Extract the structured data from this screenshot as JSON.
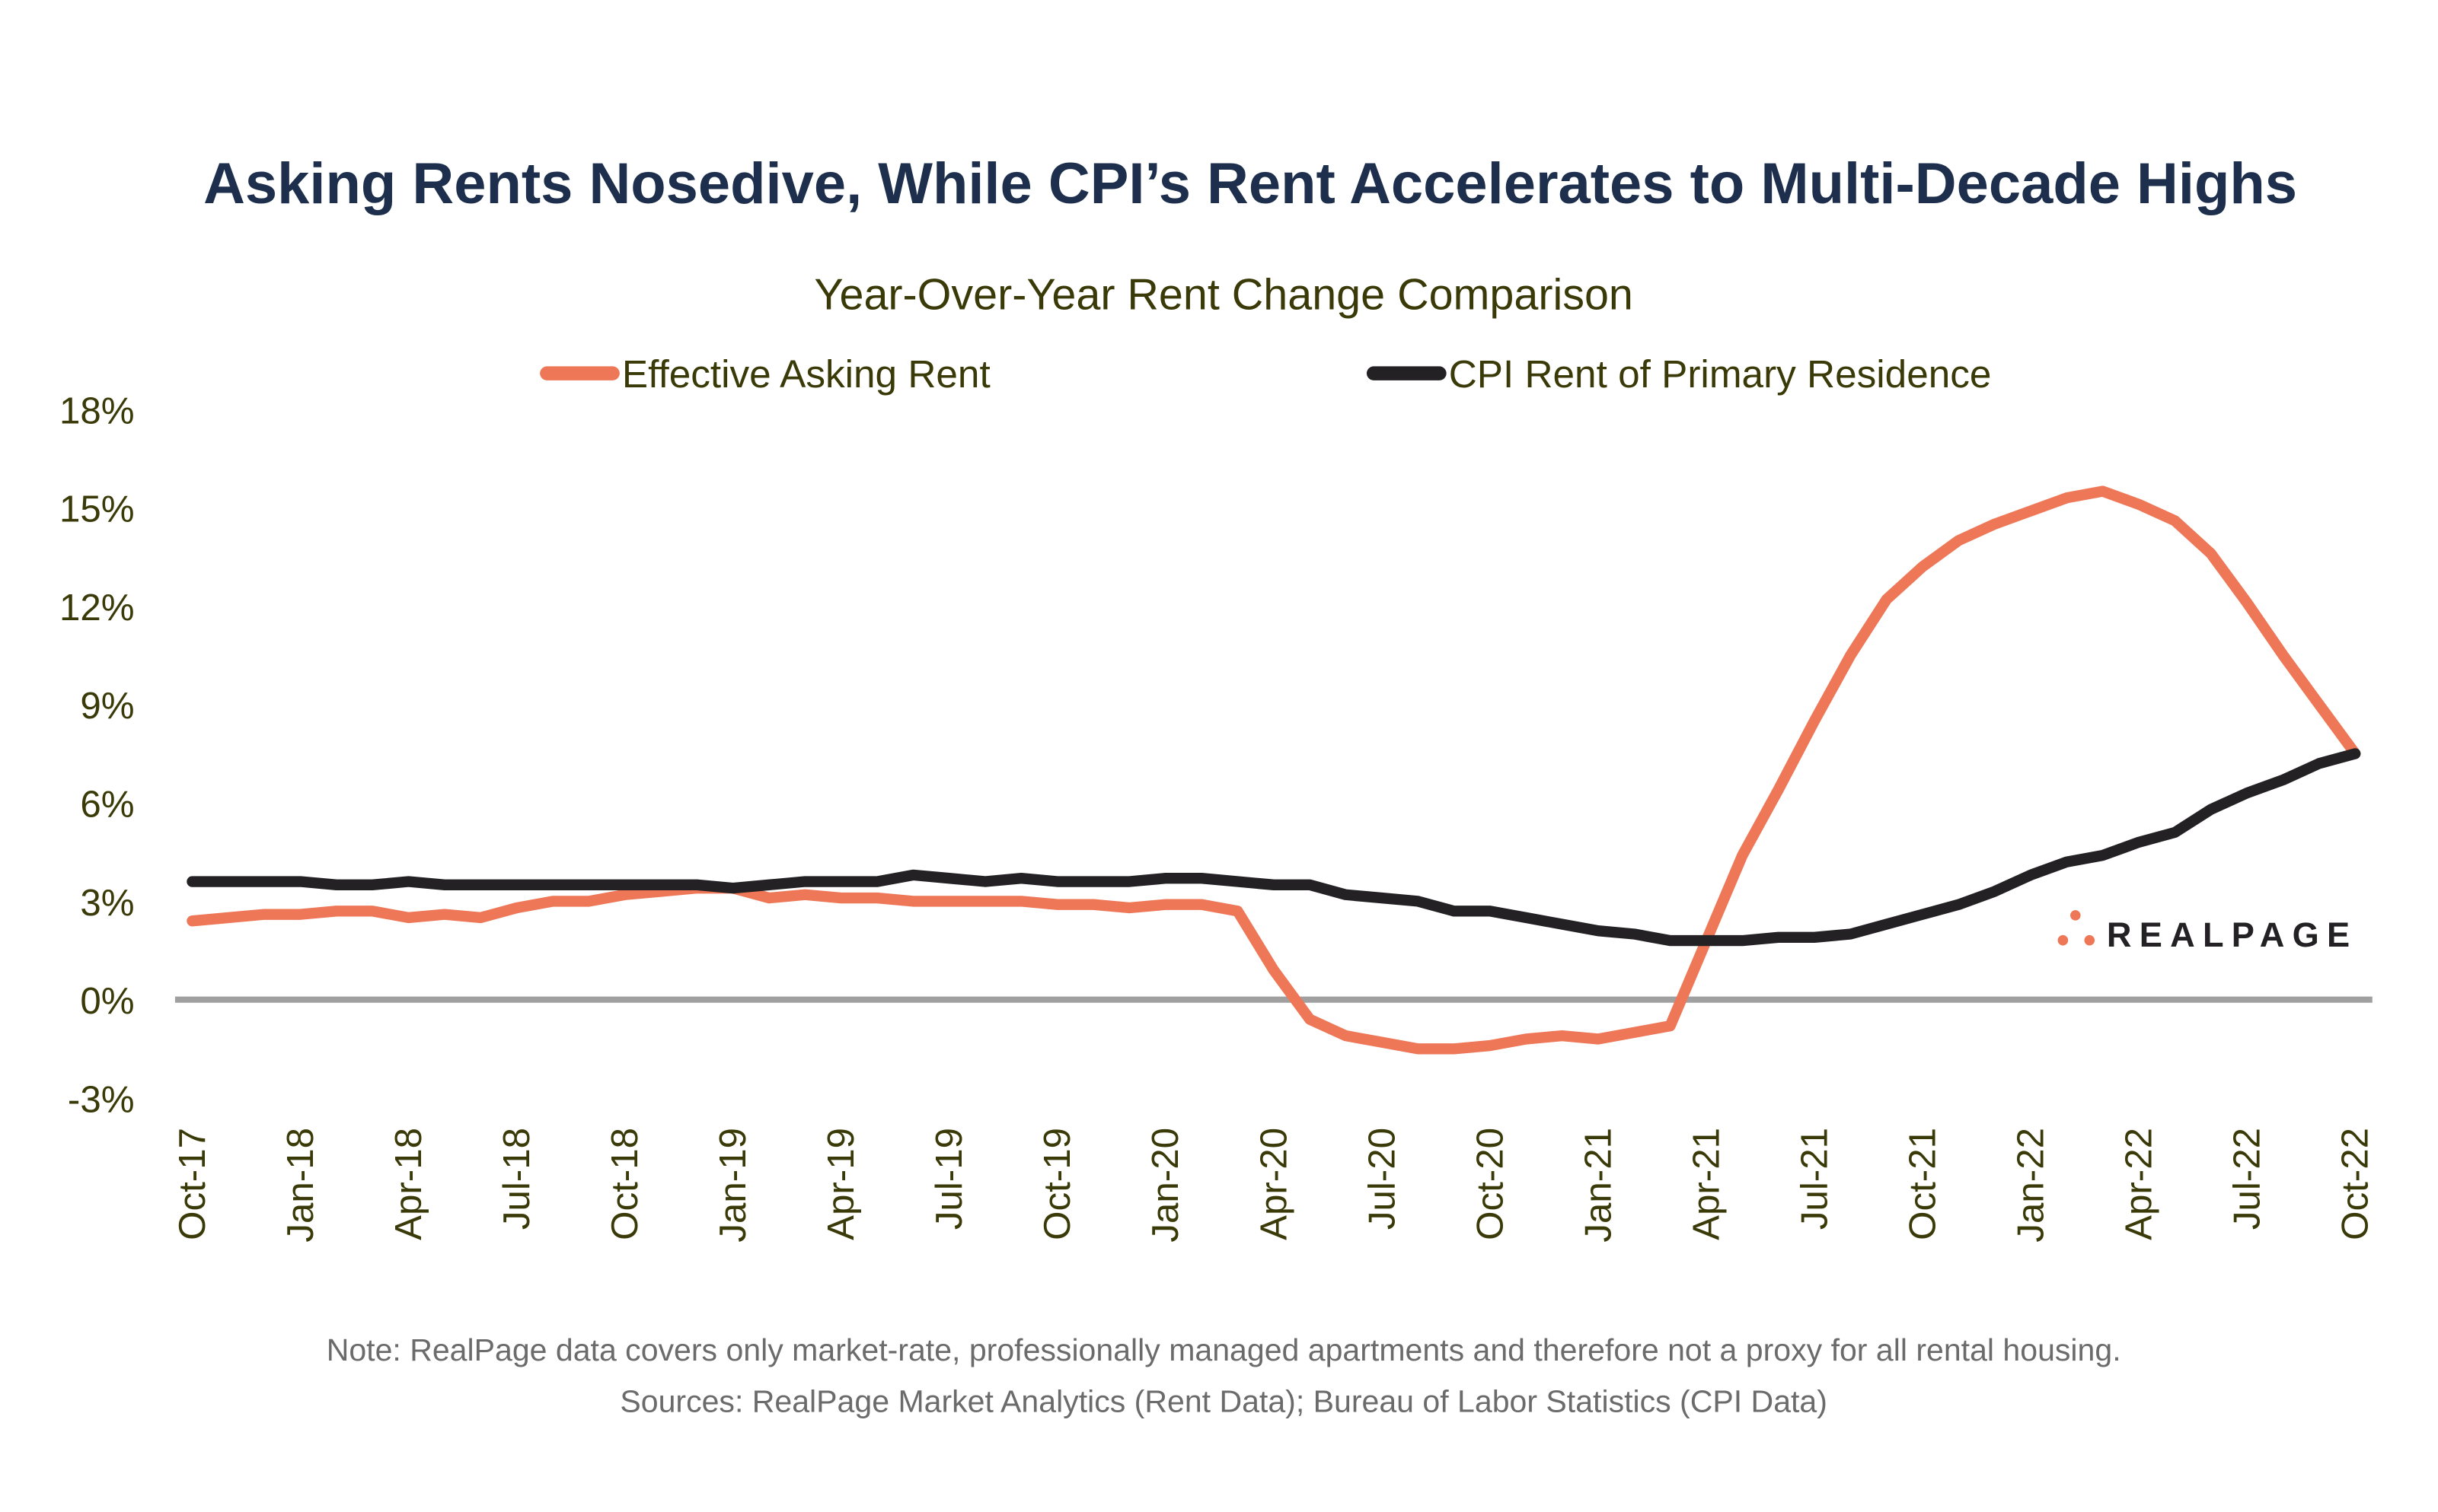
{
  "title": "Asking Rents Nosedive, While CPI’s Rent Accelerates to Multi-Decade Highs",
  "footer": {
    "note": "Note: RealPage data covers only market-rate, professionally managed apartments and therefore not a proxy for all rental housing.",
    "sources": "Sources: RealPage Market Analytics (Rent Data); Bureau of Labor Statistics (CPI Data)"
  },
  "logo": {
    "text": "REALPAGE",
    "color": "#ed7757"
  },
  "chart_data": {
    "type": "line",
    "title": "Year-Over-Year Rent Change Comparison",
    "xlabel": "",
    "ylabel": "",
    "ylim": [
      -3,
      18
    ],
    "yticks": [
      "-3%",
      "0%",
      "3%",
      "6%",
      "9%",
      "12%",
      "15%",
      "18%"
    ],
    "ytick_values": [
      -3,
      0,
      3,
      6,
      9,
      12,
      15,
      18
    ],
    "xtick_labels": [
      "Oct-17",
      "Jan-18",
      "Apr-18",
      "Jul-18",
      "Oct-18",
      "Jan-19",
      "Apr-19",
      "Jul-19",
      "Oct-19",
      "Jan-20",
      "Apr-20",
      "Jul-20",
      "Oct-20",
      "Jan-21",
      "Apr-21",
      "Jul-21",
      "Oct-21",
      "Jan-22",
      "Apr-22",
      "Jul-22",
      "Oct-22"
    ],
    "x_start": "Oct-17",
    "x_end": "Oct-22",
    "x_frequency": "monthly",
    "grid": false,
    "zero_line": true,
    "legend_position": "top",
    "series": [
      {
        "name": "Effective Asking Rent",
        "color": "#ed7757",
        "values": [
          2.4,
          2.5,
          2.6,
          2.6,
          2.7,
          2.7,
          2.5,
          2.6,
          2.5,
          2.8,
          3.0,
          3.0,
          3.2,
          3.3,
          3.4,
          3.4,
          3.1,
          3.2,
          3.1,
          3.1,
          3.0,
          3.0,
          3.0,
          3.0,
          2.9,
          2.9,
          2.8,
          2.9,
          2.9,
          2.7,
          0.9,
          -0.6,
          -1.1,
          -1.3,
          -1.5,
          -1.5,
          -1.4,
          -1.2,
          -1.1,
          -1.2,
          -1.0,
          -0.8,
          1.8,
          4.4,
          6.4,
          8.5,
          10.5,
          12.2,
          13.2,
          14.0,
          14.5,
          14.9,
          15.3,
          15.5,
          15.1,
          14.6,
          13.6,
          12.1,
          10.5,
          9.0,
          7.5
        ]
      },
      {
        "name": "CPI Rent of Primary Residence",
        "color": "#232124",
        "values": [
          3.6,
          3.6,
          3.6,
          3.6,
          3.5,
          3.5,
          3.6,
          3.5,
          3.5,
          3.5,
          3.5,
          3.5,
          3.5,
          3.5,
          3.5,
          3.4,
          3.5,
          3.6,
          3.6,
          3.6,
          3.8,
          3.7,
          3.6,
          3.7,
          3.6,
          3.6,
          3.6,
          3.7,
          3.7,
          3.6,
          3.5,
          3.5,
          3.2,
          3.1,
          3.0,
          2.7,
          2.7,
          2.5,
          2.3,
          2.1,
          2.0,
          1.8,
          1.8,
          1.8,
          1.9,
          1.9,
          2.0,
          2.3,
          2.6,
          2.9,
          3.3,
          3.8,
          4.2,
          4.4,
          4.8,
          5.1,
          5.8,
          6.3,
          6.7,
          7.2,
          7.5
        ]
      }
    ]
  }
}
